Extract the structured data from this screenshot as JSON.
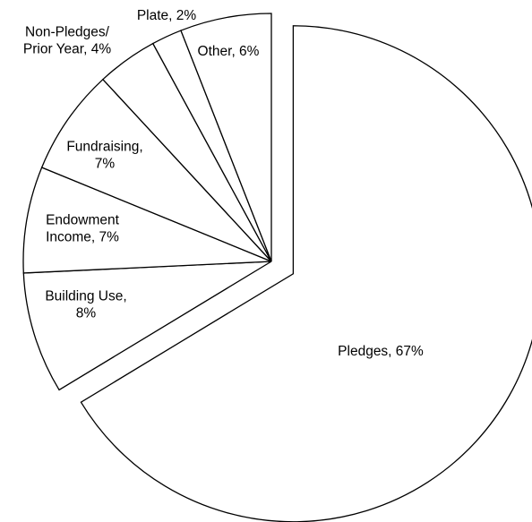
{
  "chart_data": {
    "type": "pie",
    "title": "",
    "exploded_slice": "Pledges, 67%",
    "slices": [
      {
        "label": [
          "Pledges, 67%"
        ],
        "value": 67
      },
      {
        "label": [
          "Building Use,",
          "8%"
        ],
        "value": 8
      },
      {
        "label": [
          "Endowment",
          "Income, 7%"
        ],
        "value": 7
      },
      {
        "label": [
          "Fundraising,",
          "7%"
        ],
        "value": 7
      },
      {
        "label": [
          "Non-Pledges/",
          "Prior Year, 4%"
        ],
        "value": 4
      },
      {
        "label": [
          "Plate, 2%"
        ],
        "value": 2
      },
      {
        "label": [
          "Other, 6%"
        ],
        "value": 6
      }
    ],
    "colors": {
      "fill": "#ffffff",
      "stroke": "#000000"
    },
    "legend": "none"
  }
}
